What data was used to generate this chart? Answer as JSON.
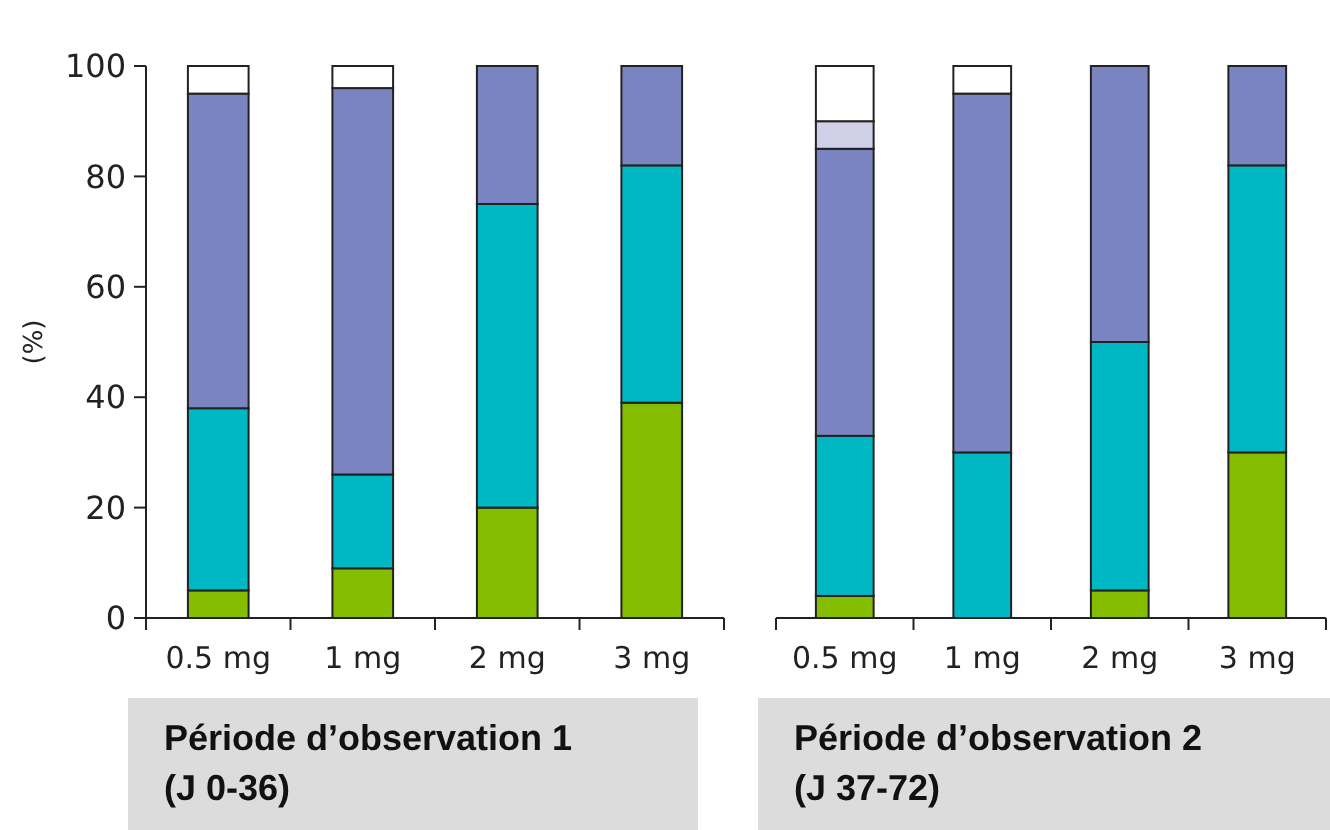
{
  "chart_data": [
    {
      "type": "bar",
      "stacked": true,
      "ylabel": "(%)",
      "categories": [
        "0.5 mg",
        "1 mg",
        "2 mg",
        "3 mg"
      ],
      "ylim": [
        0,
        100
      ],
      "yticks": [
        0,
        20,
        40,
        60,
        80,
        100
      ],
      "series": [
        {
          "color": "#84bd00",
          "values": [
            5,
            9,
            20,
            39
          ]
        },
        {
          "color": "#00b8c4",
          "values": [
            33,
            17,
            55,
            43
          ]
        },
        {
          "color": "#7a84c0",
          "values": [
            57,
            70,
            25,
            18
          ]
        },
        {
          "color": "#ffffff",
          "values": [
            5,
            4,
            0,
            0
          ]
        }
      ],
      "annotations": [
        "Période d’observation 1\n(J 0-36)"
      ]
    },
    {
      "type": "bar",
      "stacked": true,
      "categories": [
        "0.5 mg",
        "1 mg",
        "2 mg",
        "3 mg"
      ],
      "ylim": [
        0,
        100
      ],
      "tick_labels": "x",
      "series": [
        {
          "color": "#84bd00",
          "values": [
            4,
            0,
            5,
            30
          ]
        },
        {
          "color": "#00b8c4",
          "values": [
            29,
            30,
            45,
            52
          ]
        },
        {
          "color": "#7a84c0",
          "values": [
            52,
            65,
            50,
            18
          ]
        },
        {
          "color": "#d0d0e8",
          "values": [
            5,
            0,
            0,
            0
          ]
        },
        {
          "color": "#ffffff",
          "values": [
            10,
            5,
            0,
            0
          ]
        }
      ],
      "annotations": [
        "Période d’observation 2\n(J 37-72)"
      ]
    }
  ]
}
